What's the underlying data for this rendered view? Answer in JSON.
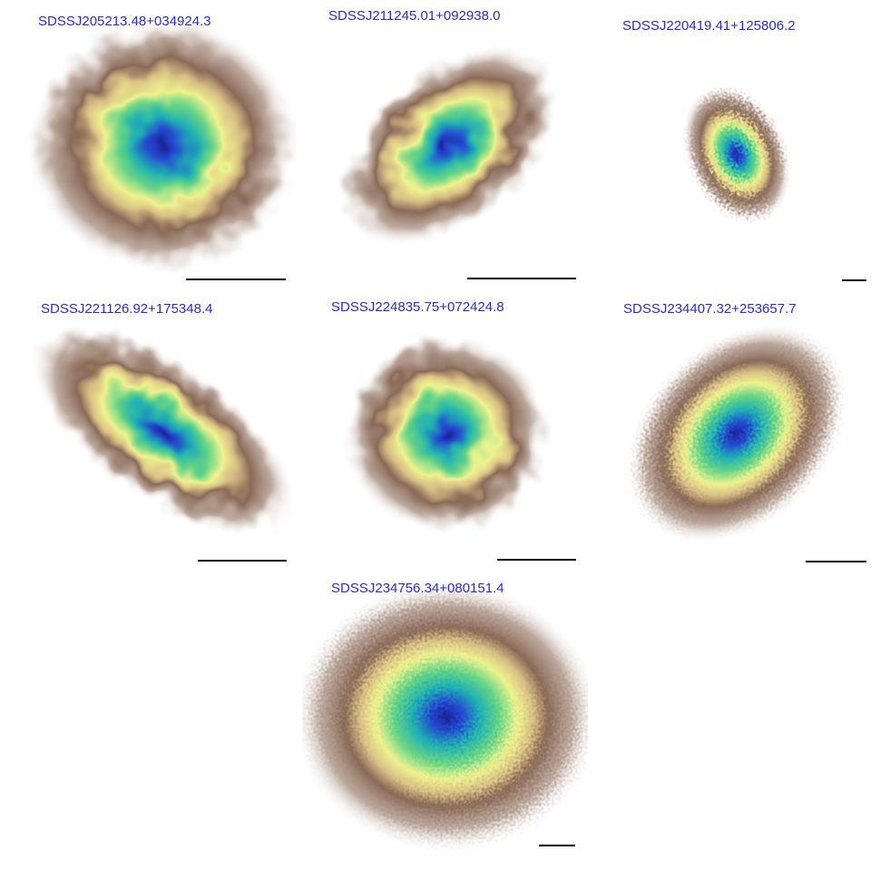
{
  "panels": [
    {
      "label": "SDSSJ205213.48+034924.3"
    },
    {
      "label": "SDSSJ211245.01+092938.0"
    },
    {
      "label": "SDSSJ220419.41+125806.2"
    },
    {
      "label": "SDSSJ221126.92+175348.4"
    },
    {
      "label": "SDSSJ224835.75+072424.8"
    },
    {
      "label": "SDSSJ234407.32+253657.7"
    },
    {
      "label": "SDSSJ234756.34+080151.4"
    }
  ]
}
